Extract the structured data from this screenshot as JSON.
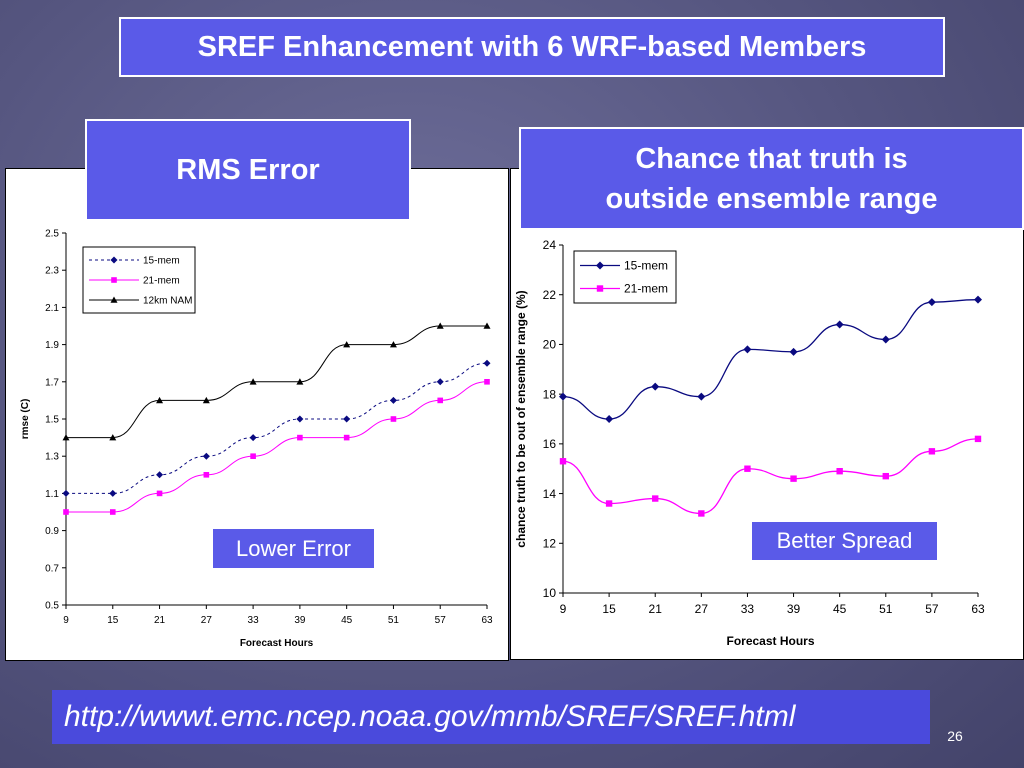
{
  "slide": {
    "title": "SREF Enhancement with 6 WRF-based Members",
    "rms_heading": "RMS Error",
    "chance_heading_line1": "Chance that truth is",
    "chance_heading_line2": "outside ensemble range",
    "lower_error_label": "Lower Error",
    "better_spread_label": "Better Spread",
    "url": "http://wwwt.emc.ncep.noaa.gov/mmb/SREF/SREF.html",
    "page_number": "26"
  },
  "colors": {
    "background": "#55557f",
    "heading_fill": "#5a5ae8",
    "series_navy": "#0a0a80",
    "series_magenta": "#ff00ff",
    "series_black": "#000000"
  },
  "chart_data": [
    {
      "type": "line",
      "title": "",
      "xlabel": "Forecast Hours",
      "ylabel": "rmse (C)",
      "x": [
        9,
        15,
        21,
        27,
        33,
        39,
        45,
        51,
        57,
        63
      ],
      "ylim": [
        0.5,
        2.5
      ],
      "yticks": [
        "0.5",
        "0.7",
        "0.9",
        "1.1",
        "1.3",
        "1.5",
        "1.7",
        "1.9",
        "2.1",
        "2.3",
        "2.5"
      ],
      "grid": false,
      "legend": "top-left",
      "series": [
        {
          "name": "15-mem",
          "values": [
            1.1,
            1.1,
            1.2,
            1.3,
            1.4,
            1.5,
            1.5,
            1.6,
            1.7,
            1.8
          ],
          "color": "#0a0a80",
          "marker": "diamond",
          "dashed": true
        },
        {
          "name": "21-mem",
          "values": [
            1.0,
            1.0,
            1.1,
            1.2,
            1.3,
            1.4,
            1.4,
            1.5,
            1.6,
            1.7
          ],
          "color": "#ff00ff",
          "marker": "square",
          "dashed": false
        },
        {
          "name": "12km NAM",
          "values": [
            1.4,
            1.4,
            1.6,
            1.6,
            1.7,
            1.7,
            1.9,
            1.9,
            2.0,
            2.0
          ],
          "color": "#000000",
          "marker": "triangle",
          "dashed": false
        }
      ]
    },
    {
      "type": "line",
      "title": "",
      "xlabel": "Forecast Hours",
      "ylabel": "chance truth to be out of ensemble range (%)",
      "x": [
        9,
        15,
        21,
        27,
        33,
        39,
        45,
        51,
        57,
        63
      ],
      "ylim": [
        10,
        24
      ],
      "yticks": [
        "10",
        "12",
        "14",
        "16",
        "18",
        "20",
        "22",
        "24"
      ],
      "grid": false,
      "legend": "top-left",
      "series": [
        {
          "name": "15-mem",
          "values": [
            17.9,
            17.0,
            18.3,
            17.9,
            19.8,
            19.7,
            20.8,
            20.2,
            21.7,
            21.8
          ],
          "color": "#0a0a80",
          "marker": "diamond",
          "dashed": false
        },
        {
          "name": "21-mem",
          "values": [
            15.3,
            13.6,
            13.8,
            13.2,
            15.0,
            14.6,
            14.9,
            14.7,
            15.7,
            16.2
          ],
          "color": "#ff00ff",
          "marker": "square",
          "dashed": false
        }
      ]
    }
  ]
}
